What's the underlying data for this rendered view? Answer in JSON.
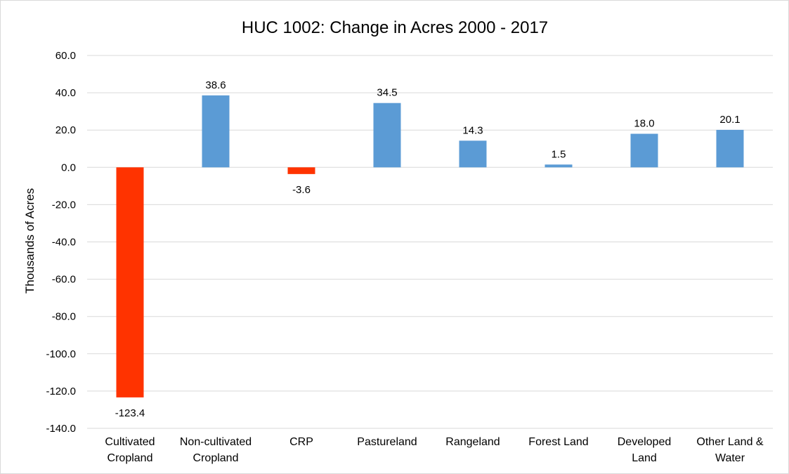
{
  "chart_data": {
    "type": "bar",
    "title": "HUC 1002: Change in Acres 2000 - 2017",
    "xlabel": "",
    "ylabel": "Thousands of Acres",
    "ylim": [
      -140,
      60
    ],
    "ytick_step": 20,
    "ytick_decimals": 1,
    "grid": true,
    "legend": "none",
    "categories": [
      [
        "Cultivated",
        "Cropland"
      ],
      [
        "Non-cultivated",
        "Cropland"
      ],
      [
        "CRP"
      ],
      [
        "Pastureland"
      ],
      [
        "Rangeland"
      ],
      [
        "Forest Land"
      ],
      [
        "Developed",
        "Land"
      ],
      [
        "Other Land &",
        "Water"
      ]
    ],
    "values": [
      -123.4,
      38.6,
      -3.6,
      34.5,
      14.3,
      1.5,
      18.0,
      20.1
    ],
    "colors": {
      "positive": "#5b9bd5",
      "negative": "#ff3300",
      "grid": "#d9d9d9"
    }
  }
}
